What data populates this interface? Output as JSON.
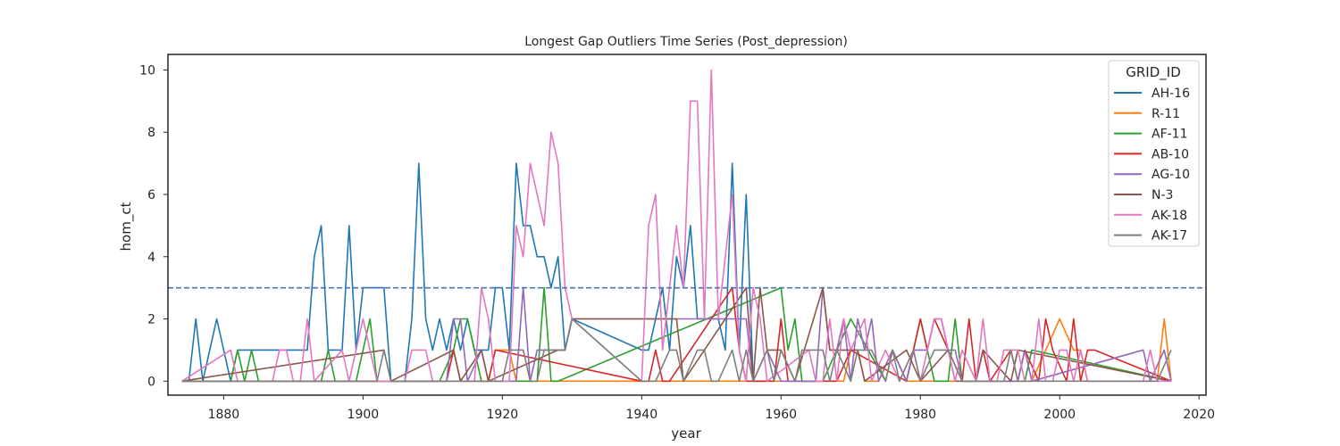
{
  "chart_data": {
    "type": "line",
    "title": "Longest Gap Outliers Time Series (Post_depression)",
    "xlabel": "year",
    "ylabel": "hom_ct",
    "xlim": [
      1872,
      2021
    ],
    "ylim": [
      -0.45,
      10.5
    ],
    "xticks": [
      1880,
      1900,
      1920,
      1940,
      1960,
      1980,
      2000,
      2020
    ],
    "yticks": [
      0,
      2,
      4,
      6,
      8,
      10
    ],
    "grid": false,
    "legend_title": "GRID_ID",
    "legend_position": "top-right",
    "threshold": {
      "value": 3,
      "style": "dashed",
      "color": "#4c72b0"
    },
    "series": [
      {
        "name": "AH-16",
        "color": "#1f77b4",
        "x": [
          1874,
          1875,
          1876,
          1877,
          1879,
          1881,
          1882,
          1883,
          1884,
          1885,
          1886,
          1887,
          1888,
          1889,
          1890,
          1891,
          1892,
          1893,
          1894,
          1895,
          1896,
          1897,
          1898,
          1899,
          1900,
          1901,
          1902,
          1903,
          1904,
          1905,
          1906,
          1907,
          1908,
          1909,
          1910,
          1911,
          1912,
          1913,
          1914,
          1915,
          1916,
          1917,
          1918,
          1919,
          1920,
          1921,
          1922,
          1923,
          1924,
          1925,
          1926,
          1927,
          1928,
          1929,
          1930,
          1940,
          1941,
          1943,
          1944,
          1945,
          1946,
          1947,
          1948,
          1949,
          1950,
          1951,
          1952,
          1953,
          1954,
          1955,
          1956,
          1957,
          1958
        ],
        "y": [
          0,
          0,
          2,
          0,
          2,
          0,
          1,
          1,
          1,
          1,
          1,
          1,
          1,
          1,
          1,
          1,
          1,
          4,
          5,
          1,
          1,
          1,
          5,
          1,
          3,
          3,
          3,
          3,
          0,
          0,
          0,
          2,
          7,
          2,
          1,
          2,
          1,
          2,
          1,
          2,
          1,
          1,
          1,
          3,
          3,
          1,
          7,
          5,
          5,
          4,
          4,
          3,
          4,
          1,
          2,
          1,
          1,
          3,
          1,
          4,
          3,
          5,
          2,
          2,
          2,
          2,
          1,
          7,
          1,
          6,
          0,
          0,
          0
        ]
      },
      {
        "name": "R-11",
        "color": "#ff7f0e",
        "x": [
          1874,
          1918,
          1919,
          1920,
          1921,
          1922,
          1930,
          1940,
          1968,
          1969,
          1970,
          1971,
          1972,
          1974,
          1976,
          1978,
          1980,
          1990,
          1996,
          1998,
          2000,
          2002,
          2003,
          2004,
          2010,
          2014,
          2015,
          2016
        ],
        "y": [
          0,
          0,
          1,
          1,
          1,
          0,
          0,
          0,
          0,
          0,
          1,
          1,
          0,
          0,
          1,
          0,
          0,
          0,
          0,
          1,
          2,
          1,
          1,
          0,
          0,
          0,
          2,
          0
        ]
      },
      {
        "name": "AF-11",
        "color": "#2ca02c",
        "x": [
          1874,
          1881,
          1882,
          1883,
          1884,
          1885,
          1886,
          1894,
          1895,
          1896,
          1899,
          1900,
          1901,
          1902,
          1910,
          1911,
          1913,
          1914,
          1915,
          1916,
          1917,
          1920,
          1925,
          1926,
          1927,
          1928,
          1960,
          1961,
          1962,
          1963,
          1964,
          1966,
          1968,
          1970,
          1975,
          1976,
          1978,
          1980,
          1981,
          1982,
          1984,
          1985,
          1986,
          1995,
          1996,
          2016
        ],
        "y": [
          0,
          0,
          1,
          0,
          1,
          0,
          0,
          0,
          1,
          0,
          0,
          1,
          2,
          0,
          0,
          0,
          1,
          2,
          2,
          1,
          0,
          0,
          0,
          3,
          0,
          0,
          3,
          1,
          2,
          0,
          0,
          0,
          1,
          2,
          0,
          1,
          0,
          2,
          1,
          0,
          0,
          2,
          0,
          0,
          1,
          0
        ]
      },
      {
        "name": "AB-10",
        "color": "#d62728",
        "x": [
          1874,
          1912,
          1913,
          1914,
          1918,
          1919,
          1940,
          1941,
          1942,
          1943,
          1944,
          1953,
          1954,
          1955,
          1959,
          1960,
          1961,
          1968,
          1970,
          1978,
          1980,
          1981,
          1982,
          1986,
          1987,
          1988,
          1989,
          1990,
          1993,
          1994,
          1995,
          1997,
          1998,
          1999,
          2001,
          2002,
          2003,
          2004,
          2005,
          2016
        ],
        "y": [
          0,
          0,
          1,
          0,
          0,
          1,
          0,
          0,
          1,
          0,
          0,
          3,
          1,
          0,
          0,
          2,
          0,
          0,
          1,
          0,
          2,
          1,
          2,
          0,
          2,
          0,
          1,
          0,
          1,
          0,
          1,
          0,
          2,
          1,
          0,
          2,
          0,
          1,
          1,
          0
        ]
      },
      {
        "name": "AG-10",
        "color": "#9467bd",
        "x": [
          1874,
          1912,
          1913,
          1914,
          1915,
          1917,
          1918,
          1922,
          1923,
          1924,
          1925,
          1926,
          1927,
          1929,
          1930,
          1955,
          1956,
          1958,
          1960,
          1965,
          1966,
          1967,
          1968,
          1969,
          1970,
          1971,
          1972,
          1973,
          1974,
          1976,
          1978,
          1979,
          1980,
          1981,
          1982,
          1983,
          1984,
          1985,
          1986,
          1990,
          1994,
          1995,
          1996,
          2012,
          2013,
          2015,
          2016
        ],
        "y": [
          0,
          0,
          2,
          2,
          0,
          1,
          0,
          0,
          3,
          0,
          1,
          1,
          1,
          1,
          2,
          2,
          0,
          1,
          0,
          0,
          3,
          1,
          1,
          2,
          0,
          2,
          1,
          2,
          0,
          1,
          0,
          1,
          1,
          1,
          2,
          2,
          1,
          1,
          0,
          0,
          0,
          1,
          0,
          1,
          0,
          1,
          0
        ]
      },
      {
        "name": "N-3",
        "color": "#8c564b",
        "x": [
          1874,
          1903,
          1904,
          1913,
          1914,
          1917,
          1918,
          1928,
          1929,
          1930,
          1945,
          1946,
          1955,
          1956,
          1957,
          1958,
          1959,
          1960,
          1962,
          1966,
          1967,
          1971,
          1972,
          1978,
          1980,
          1984,
          1985,
          1988,
          1989,
          1993,
          1994,
          2016
        ],
        "y": [
          0,
          1,
          0,
          1,
          0,
          1,
          0,
          1,
          1,
          2,
          2,
          0,
          3,
          0,
          3,
          1,
          1,
          1,
          0,
          3,
          1,
          1,
          0,
          1,
          0,
          1,
          0,
          0,
          1,
          0,
          1,
          0
        ]
      },
      {
        "name": "AK-18",
        "color": "#e377c2",
        "x": [
          1874,
          1881,
          1882,
          1887,
          1888,
          1889,
          1890,
          1891,
          1892,
          1893,
          1897,
          1898,
          1900,
          1901,
          1902,
          1906,
          1907,
          1909,
          1910,
          1916,
          1917,
          1918,
          1919,
          1921,
          1922,
          1923,
          1924,
          1926,
          1927,
          1928,
          1929,
          1930,
          1940,
          1941,
          1942,
          1943,
          1944,
          1945,
          1946,
          1947,
          1948,
          1949,
          1950,
          1951,
          1952,
          1953,
          1954,
          1955,
          1956,
          1957,
          1958,
          1964,
          1965,
          1966,
          1967,
          1968,
          1969,
          1970,
          1972,
          1973,
          1975,
          1977,
          1979,
          1980,
          1982,
          1983,
          1984,
          1985,
          1986,
          1988,
          1989,
          1990,
          1991,
          1992,
          1993,
          1994,
          1995,
          1996,
          1997,
          1998,
          1999,
          2000,
          2001,
          2002,
          2003,
          2004,
          2012,
          2013,
          2014,
          2016
        ],
        "y": [
          0,
          1,
          0,
          0,
          1,
          1,
          0,
          0,
          2,
          0,
          1,
          0,
          2,
          1,
          0,
          0,
          1,
          1,
          0,
          0,
          3,
          2,
          0,
          0,
          5,
          4,
          7,
          5,
          8,
          7,
          3,
          2,
          0,
          5,
          6,
          1,
          3,
          5,
          3,
          9,
          9,
          2,
          10,
          2,
          4,
          6,
          1,
          0,
          3,
          2,
          0,
          1,
          0,
          0,
          2,
          0,
          2,
          1,
          2,
          0,
          1,
          0,
          1,
          0,
          2,
          2,
          1,
          0,
          1,
          0,
          2,
          0,
          0,
          1,
          1,
          1,
          0,
          0,
          2,
          0,
          0,
          1,
          1,
          0,
          1,
          0,
          0,
          1,
          0,
          0
        ]
      },
      {
        "name": "AK-17",
        "color": "#7f7f7f",
        "x": [
          1874,
          1901,
          1902,
          1903,
          1904,
          1920,
          1921,
          1922,
          1923,
          1924,
          1925,
          1926,
          1927,
          1928,
          1929,
          1930,
          1940,
          1942,
          1944,
          1945,
          1946,
          1948,
          1949,
          1950,
          1951,
          1953,
          1954,
          1955,
          1956,
          1958,
          1959,
          1960,
          1962,
          1963,
          1965,
          1966,
          1967,
          1968,
          1970,
          1971,
          1973,
          1975,
          1976,
          1977,
          1979,
          1980,
          1982,
          1983,
          1984,
          1986,
          1987,
          1990,
          1992,
          1993,
          1994,
          1997,
          2000,
          2002,
          2004,
          2006,
          2010,
          2012,
          2014,
          2016
        ],
        "y": [
          0,
          0,
          0,
          1,
          0,
          0,
          1,
          1,
          1,
          0,
          0,
          1,
          1,
          1,
          1,
          2,
          0,
          0,
          1,
          1,
          0,
          1,
          1,
          0,
          0,
          1,
          0,
          1,
          0,
          1,
          0,
          1,
          0,
          1,
          1,
          1,
          0,
          1,
          0,
          1,
          1,
          0,
          1,
          0,
          1,
          0,
          1,
          1,
          1,
          0,
          0,
          0,
          0,
          1,
          0,
          0,
          0,
          0,
          0,
          0,
          0,
          0,
          0,
          1
        ]
      }
    ]
  }
}
